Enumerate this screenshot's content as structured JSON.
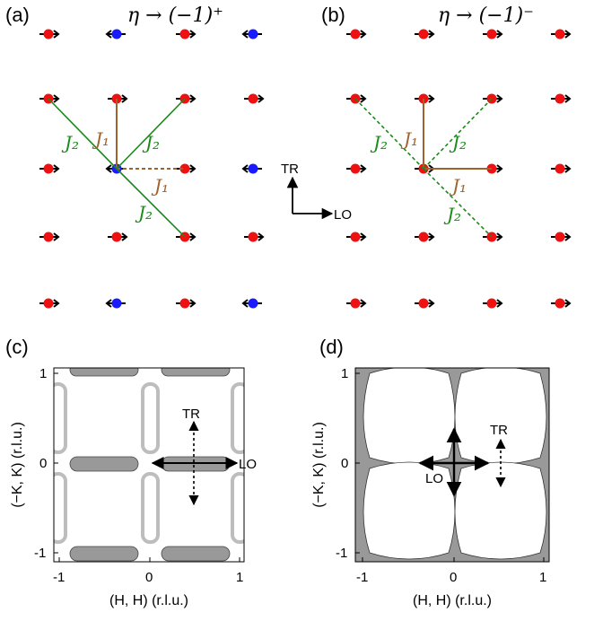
{
  "panels": {
    "a": {
      "label": "(a)",
      "title": "η → (−1)⁺"
    },
    "b": {
      "label": "(b)",
      "title": "η → (−1)⁻"
    },
    "c": {
      "label": "(c)"
    },
    "d": {
      "label": "(d)"
    }
  },
  "couplings": {
    "j1": "J₁",
    "j2": "J₂"
  },
  "axes_legend": {
    "tr": "TR",
    "lo": "LO"
  },
  "plots": {
    "xlabel": "(H, H) (r.l.u.)",
    "ylabel": "(−K, K) (r.l.u.)",
    "ticks": [
      "-1",
      "0",
      "1"
    ]
  },
  "colors": {
    "red_site": "#ee1111",
    "blue_site": "#1a1aff",
    "j1": "#a0622d",
    "j2": "#1a8a1a",
    "fill": "#999999",
    "ring": "#bdbdbd"
  }
}
